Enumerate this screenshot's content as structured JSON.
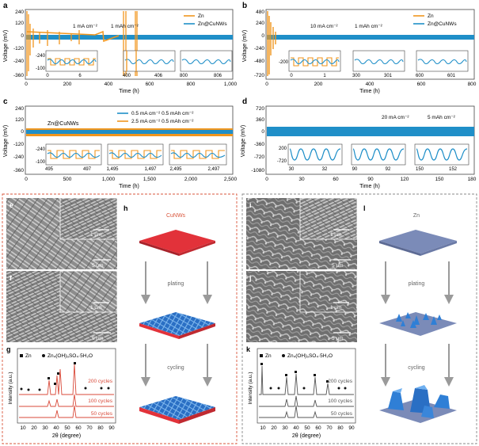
{
  "colors": {
    "zn": "#f0961e",
    "cunws": "#1f8fc8",
    "panel_border": "#d9553b",
    "cu_substrate": "#e2323a",
    "zn_substrate": "#7b8bb8",
    "deposit": "#2f7fd6",
    "arrow": "#9a9a9a"
  },
  "panels": {
    "a": {
      "label": "a",
      "xlabel": "Time (h)",
      "ylabel": "Voltage (mV)",
      "yticks": [
        "240",
        "120",
        "0",
        "-120",
        "-240",
        "-360"
      ],
      "xticks": [
        "0",
        "200",
        "400",
        "600",
        "800",
        "1,000"
      ],
      "legend": [
        "Zn",
        "Zn@CuNWs"
      ],
      "annotations": [
        "1 mA cm⁻²",
        "1 mAh cm⁻²"
      ],
      "inset_ylabels": [
        "-240",
        "-100"
      ],
      "inset_xticks": [
        [
          "0",
          "6"
        ],
        [
          "400",
          "406"
        ],
        [
          "800",
          "806"
        ]
      ]
    },
    "b": {
      "label": "b",
      "xlabel": "Time (h)",
      "ylabel": "Voltage (mV)",
      "yticks": [
        "480",
        "240",
        "0",
        "-240",
        "-480",
        "-720"
      ],
      "xticks": [
        "0",
        "200",
        "400",
        "600",
        "800"
      ],
      "legend": [
        "Zn",
        "Zn@CuNWs"
      ],
      "annotations": [
        "10 mA cm⁻²",
        "1 mAh cm⁻²"
      ],
      "inset_ylabels": [
        "-200"
      ],
      "inset_xticks": [
        [
          "0",
          "1"
        ],
        [
          "300",
          "301"
        ],
        [
          "600",
          "601"
        ]
      ]
    },
    "c": {
      "label": "c",
      "xlabel": "Time (h)",
      "ylabel": "Voltage (mV)",
      "yticks": [
        "240",
        "120",
        "0",
        "-120",
        "-240",
        "-360"
      ],
      "xticks": [
        "0",
        "500",
        "1,000",
        "1,500",
        "2,000",
        "2,500"
      ],
      "series_title": "Zn@CuNWs",
      "legend": [
        "0.5 mA cm⁻² 0.5 mAh cm⁻²",
        "2.5 mA cm⁻² 0.5 mAh cm⁻²"
      ],
      "inset_ylabels": [
        "-240",
        "-100"
      ],
      "inset_xticks": [
        [
          "495",
          "497"
        ],
        [
          "1,495",
          "1,497"
        ],
        [
          "2,495",
          "2,497"
        ]
      ]
    },
    "d": {
      "label": "d",
      "xlabel": "Time (h)",
      "ylabel": "Voltage (mV)",
      "yticks": [
        "720",
        "360",
        "0",
        "-360",
        "-720",
        "-1080"
      ],
      "xticks": [
        "0",
        "30",
        "60",
        "90",
        "120",
        "150",
        "180"
      ],
      "annotations": [
        "20 mA cm⁻²",
        "5 mAh cm⁻²"
      ],
      "inset_ylabels": [
        "200",
        "-720"
      ],
      "inset_xticks": [
        [
          "30",
          "32"
        ],
        [
          "90",
          "92"
        ],
        [
          "150",
          "152"
        ]
      ]
    },
    "e": {
      "label": "e",
      "scale": "5 μm",
      "inset_scale": "1 μm"
    },
    "f": {
      "label": "f",
      "scale": "5 μm",
      "inset_scale": "1 μm"
    },
    "g": {
      "label": "g",
      "xlabel": "2θ (degree)",
      "ylabel": "Intensity (a.u.)",
      "xticks": [
        "10",
        "20",
        "30",
        "40",
        "50",
        "60",
        "70",
        "80",
        "90"
      ],
      "legend": [
        "Zn",
        "Zn₄(OH)₆SO₄·5H₂O"
      ],
      "traces": [
        "200 cycles",
        "100 cycles",
        "50 cycles"
      ]
    },
    "h": {
      "label": "h",
      "title": "CuNWs",
      "steps": [
        "plating",
        "cycling"
      ]
    },
    "i": {
      "label": "i",
      "scale": "5 μm",
      "inset_scale": "1 μm"
    },
    "j": {
      "label": "j",
      "scale": "5 μm",
      "inset_scale": "1 μm"
    },
    "k": {
      "label": "k",
      "xlabel": "2θ (degree)",
      "ylabel": "Intensity (a.u.)",
      "xticks": [
        "10",
        "20",
        "30",
        "40",
        "50",
        "60",
        "70",
        "80",
        "90"
      ],
      "legend": [
        "Zn",
        "Zn₄(OH)₆SO₄·5H₂O"
      ],
      "traces": [
        "200 cycles",
        "100 cycles",
        "50 cycles"
      ]
    },
    "l": {
      "label": "l",
      "title": "Zn",
      "steps": [
        "plating",
        "cycling"
      ]
    }
  }
}
